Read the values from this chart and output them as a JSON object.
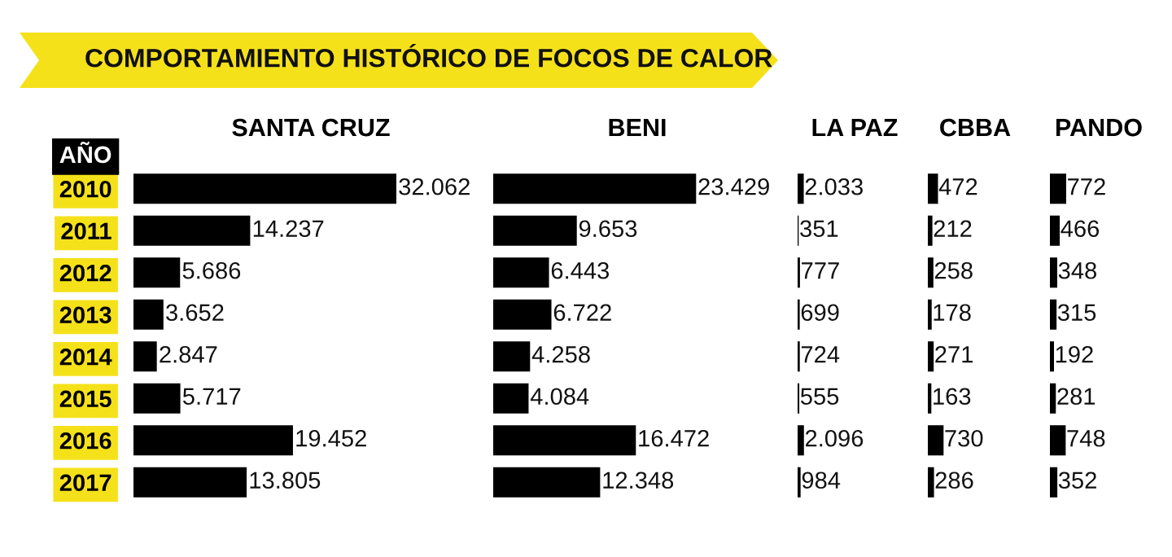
{
  "chart_data": [
    {
      "type": "other",
      "title": "COMPORTAMIENTO HISTÓRICO DE FOCOS DE CALOR"
    },
    {
      "type": "bar",
      "orientation": "horizontal",
      "title": "SANTA CRUZ",
      "ylabel": "AÑO",
      "tick_labels": "y",
      "color": "#000000",
      "categories": [
        "2010",
        "2011",
        "2012",
        "2013",
        "2014",
        "2015",
        "2016",
        "2017"
      ],
      "values": [
        32062,
        14237,
        5686,
        3652,
        2847,
        5717,
        19452,
        13805
      ],
      "value_labels": [
        "32.062",
        "14.237",
        "5.686",
        "3.652",
        "2.847",
        "5.717",
        "19.452",
        "13.805"
      ]
    },
    {
      "type": "bar",
      "orientation": "horizontal",
      "title": "BENI",
      "tick_labels": false,
      "color": "#000000",
      "categories": [
        "2010",
        "2011",
        "2012",
        "2013",
        "2014",
        "2015",
        "2016",
        "2017"
      ],
      "values": [
        23429,
        9653,
        6443,
        6722,
        4258,
        4084,
        16472,
        12348
      ],
      "value_labels": [
        "23.429",
        "9.653",
        "6.443",
        "6.722",
        "4.258",
        "4.084",
        "16.472",
        "12.348"
      ]
    },
    {
      "type": "bar",
      "orientation": "horizontal",
      "title": "LA PAZ",
      "tick_labels": false,
      "color": "#000000",
      "categories": [
        "2010",
        "2011",
        "2012",
        "2013",
        "2014",
        "2015",
        "2016",
        "2017"
      ],
      "values": [
        2033,
        351,
        777,
        699,
        724,
        555,
        2096,
        984
      ],
      "value_labels": [
        "2.033",
        "351",
        "777",
        "699",
        "724",
        "555",
        "2.096",
        "984"
      ]
    },
    {
      "type": "bar",
      "orientation": "horizontal",
      "title": "CBBA",
      "tick_labels": false,
      "color": "#000000",
      "categories": [
        "2010",
        "2011",
        "2012",
        "2013",
        "2014",
        "2015",
        "2016",
        "2017"
      ],
      "values": [
        472,
        212,
        258,
        178,
        271,
        163,
        730,
        286
      ],
      "value_labels": [
        "472",
        "212",
        "258",
        "178",
        "271",
        "163",
        "730",
        "286"
      ]
    },
    {
      "type": "bar",
      "orientation": "horizontal",
      "title": "PANDO",
      "tick_labels": false,
      "color": "#000000",
      "categories": [
        "2010",
        "2011",
        "2012",
        "2013",
        "2014",
        "2015",
        "2016",
        "2017"
      ],
      "values": [
        772,
        466,
        348,
        315,
        192,
        281,
        748,
        352
      ],
      "value_labels": [
        "772",
        "466",
        "348",
        "315",
        "192",
        "281",
        "748",
        "352"
      ]
    }
  ]
}
